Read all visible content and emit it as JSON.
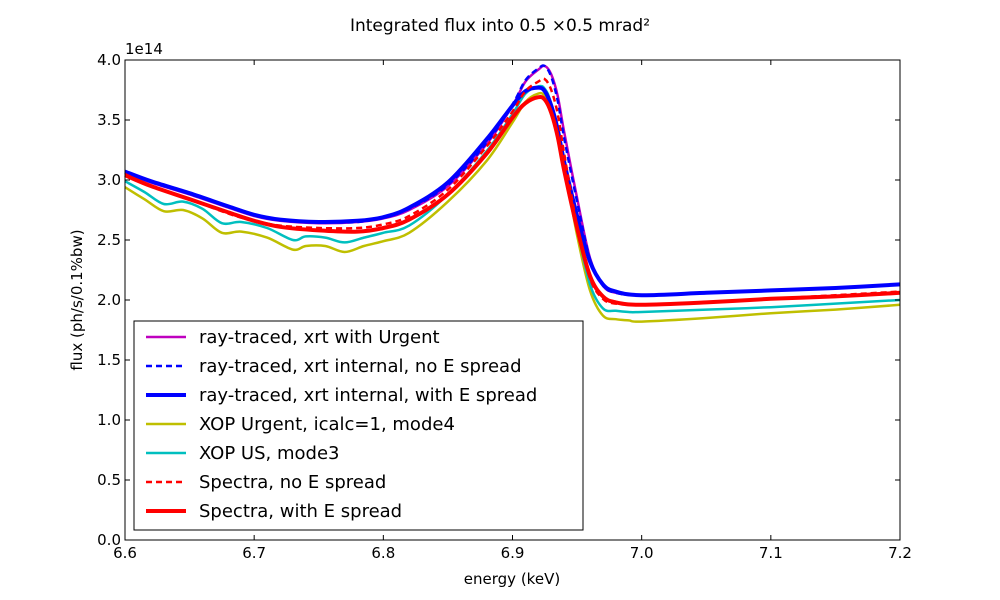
{
  "chart_data": {
    "type": "line",
    "title": "Integrated flux into 0.5 ×0.5 mrad²",
    "xlabel": "energy (keV)",
    "ylabel": "flux (ph/s/0.1%bw)",
    "y_multiplier": "1e14",
    "xlim": [
      6.6,
      7.2
    ],
    "ylim": [
      0.0,
      4.0
    ],
    "xticks": [
      "6.6",
      "6.7",
      "6.8",
      "6.9",
      "7.0",
      "7.1",
      "7.2"
    ],
    "yticks": [
      "0.0",
      "0.5",
      "1.0",
      "1.5",
      "2.0",
      "2.5",
      "3.0",
      "3.5",
      "4.0"
    ],
    "grid": false,
    "legend_position": "lower-left",
    "series": [
      {
        "name": "ray-traced, xrt with Urgent",
        "color": "#bf00bf",
        "style": "solid",
        "width": 2.5,
        "x": [
          6.6,
          6.62,
          6.65,
          6.68,
          6.7,
          6.72,
          6.75,
          6.78,
          6.8,
          6.82,
          6.85,
          6.88,
          6.9,
          6.91,
          6.92,
          6.925,
          6.93,
          6.935,
          6.94,
          6.95,
          6.96,
          6.97,
          6.98,
          7.0,
          7.05,
          7.1,
          7.15,
          7.2
        ],
        "y": [
          3.06,
          2.98,
          2.88,
          2.77,
          2.7,
          2.66,
          2.64,
          2.65,
          2.68,
          2.75,
          2.95,
          3.3,
          3.62,
          3.82,
          3.92,
          3.95,
          3.88,
          3.7,
          3.4,
          2.85,
          2.35,
          2.12,
          2.06,
          2.04,
          2.06,
          2.08,
          2.1,
          2.13
        ]
      },
      {
        "name": "ray-traced, xrt internal, no E spread",
        "color": "#0000ff",
        "style": "dashed",
        "width": 2.5,
        "x": [
          6.6,
          6.62,
          6.65,
          6.68,
          6.7,
          6.72,
          6.75,
          6.78,
          6.8,
          6.82,
          6.85,
          6.88,
          6.9,
          6.91,
          6.92,
          6.925,
          6.93,
          6.935,
          6.94,
          6.95,
          6.96,
          6.97,
          6.98,
          7.0,
          7.05,
          7.1,
          7.15,
          7.2
        ],
        "y": [
          3.07,
          2.99,
          2.89,
          2.78,
          2.71,
          2.67,
          2.65,
          2.65,
          2.69,
          2.76,
          2.96,
          3.31,
          3.63,
          3.83,
          3.93,
          3.95,
          3.86,
          3.66,
          3.35,
          2.82,
          2.34,
          2.12,
          2.06,
          2.04,
          2.06,
          2.08,
          2.1,
          2.13
        ]
      },
      {
        "name": "ray-traced, xrt internal, with E spread",
        "color": "#0000ff",
        "style": "solid",
        "width": 4,
        "x": [
          6.6,
          6.62,
          6.65,
          6.68,
          6.7,
          6.72,
          6.75,
          6.78,
          6.8,
          6.82,
          6.85,
          6.88,
          6.9,
          6.91,
          6.92,
          6.925,
          6.93,
          6.935,
          6.94,
          6.95,
          6.96,
          6.97,
          6.98,
          7.0,
          7.05,
          7.1,
          7.15,
          7.2
        ],
        "y": [
          3.07,
          2.99,
          2.89,
          2.78,
          2.71,
          2.67,
          2.65,
          2.66,
          2.69,
          2.77,
          2.98,
          3.34,
          3.62,
          3.74,
          3.77,
          3.74,
          3.62,
          3.42,
          3.15,
          2.7,
          2.32,
          2.13,
          2.07,
          2.04,
          2.06,
          2.08,
          2.1,
          2.13
        ]
      },
      {
        "name": "XOP Urgent, icalc=1, mode4",
        "color": "#bfbf00",
        "style": "solid",
        "width": 2.5,
        "x": [
          6.6,
          6.615,
          6.63,
          6.645,
          6.66,
          6.675,
          6.69,
          6.71,
          6.73,
          6.74,
          6.755,
          6.77,
          6.785,
          6.8,
          6.82,
          6.85,
          6.88,
          6.9,
          6.91,
          6.92,
          6.925,
          6.93,
          6.94,
          6.95,
          6.96,
          6.97,
          6.98,
          6.99,
          7.0,
          7.05,
          7.1,
          7.15,
          7.2
        ],
        "y": [
          2.94,
          2.84,
          2.74,
          2.75,
          2.68,
          2.56,
          2.57,
          2.52,
          2.42,
          2.45,
          2.45,
          2.4,
          2.45,
          2.49,
          2.56,
          2.82,
          3.16,
          3.48,
          3.65,
          3.72,
          3.7,
          3.58,
          3.12,
          2.54,
          2.08,
          1.87,
          1.84,
          1.83,
          1.82,
          1.85,
          1.89,
          1.92,
          1.96
        ]
      },
      {
        "name": "XOP US, mode3",
        "color": "#00bfbf",
        "style": "solid",
        "width": 2.5,
        "x": [
          6.6,
          6.615,
          6.63,
          6.645,
          6.66,
          6.675,
          6.69,
          6.71,
          6.73,
          6.74,
          6.755,
          6.77,
          6.785,
          6.8,
          6.82,
          6.85,
          6.88,
          6.9,
          6.91,
          6.92,
          6.925,
          6.93,
          6.94,
          6.95,
          6.96,
          6.97,
          6.98,
          6.99,
          7.0,
          7.05,
          7.1,
          7.15,
          7.2
        ],
        "y": [
          2.99,
          2.9,
          2.8,
          2.82,
          2.76,
          2.64,
          2.65,
          2.6,
          2.5,
          2.53,
          2.52,
          2.48,
          2.52,
          2.56,
          2.62,
          2.88,
          3.24,
          3.55,
          3.72,
          3.78,
          3.76,
          3.63,
          3.18,
          2.6,
          2.13,
          1.93,
          1.91,
          1.9,
          1.9,
          1.92,
          1.94,
          1.97,
          2.0
        ]
      },
      {
        "name": "Spectra, no E spread",
        "color": "#ff0000",
        "style": "dashed",
        "width": 2.5,
        "x": [
          6.6,
          6.62,
          6.65,
          6.68,
          6.7,
          6.72,
          6.75,
          6.78,
          6.8,
          6.82,
          6.85,
          6.88,
          6.9,
          6.91,
          6.92,
          6.925,
          6.93,
          6.935,
          6.94,
          6.95,
          6.96,
          6.97,
          6.98,
          7.0,
          7.05,
          7.1,
          7.15,
          7.2
        ],
        "y": [
          3.05,
          2.95,
          2.84,
          2.72,
          2.66,
          2.62,
          2.6,
          2.6,
          2.63,
          2.7,
          2.92,
          3.28,
          3.57,
          3.74,
          3.82,
          3.84,
          3.75,
          3.55,
          3.22,
          2.62,
          2.18,
          2.01,
          1.97,
          1.96,
          1.98,
          2.01,
          2.04,
          2.07
        ]
      },
      {
        "name": "Spectra, with E spread",
        "color": "#ff0000",
        "style": "solid",
        "width": 4,
        "x": [
          6.6,
          6.62,
          6.65,
          6.68,
          6.7,
          6.72,
          6.75,
          6.78,
          6.8,
          6.82,
          6.85,
          6.88,
          6.9,
          6.91,
          6.92,
          6.925,
          6.93,
          6.935,
          6.94,
          6.95,
          6.96,
          6.97,
          6.98,
          7.0,
          7.05,
          7.1,
          7.15,
          7.2
        ],
        "y": [
          3.04,
          2.95,
          2.84,
          2.73,
          2.66,
          2.61,
          2.58,
          2.57,
          2.6,
          2.67,
          2.88,
          3.22,
          3.52,
          3.64,
          3.69,
          3.67,
          3.56,
          3.36,
          3.08,
          2.6,
          2.2,
          2.03,
          1.98,
          1.96,
          1.98,
          2.01,
          2.03,
          2.06
        ]
      }
    ]
  }
}
